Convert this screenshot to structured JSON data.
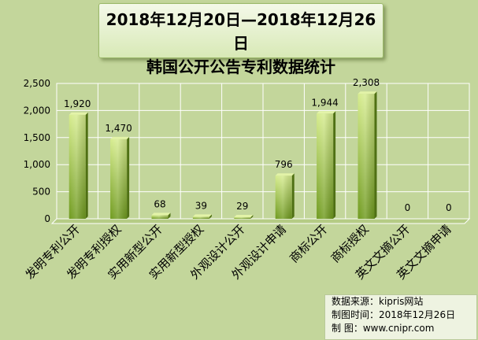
{
  "title": {
    "line1": "2018年12月20日—2018年12月26日",
    "line2": "韩国公开公告专利数据统计"
  },
  "source": {
    "line1": "数据来源：kipris网站",
    "line2": "制图时间：2018年12月26日",
    "line3": "制    图：www.cnipr.com"
  },
  "colors": {
    "bar_top": "#d6ec8e",
    "bar_bottom": "#6f9a1e",
    "background": "#c3d69b"
  },
  "chart_data": {
    "type": "bar",
    "categories": [
      "发明专利公开",
      "发明专利授权",
      "实用新型公开",
      "实用新型授权",
      "外观设计公开",
      "外观设计申请",
      "商标公开",
      "商标授权",
      "英文文摘公开",
      "英文文摘申请"
    ],
    "values": [
      1920,
      1470,
      68,
      39,
      29,
      796,
      1944,
      2308,
      0,
      0
    ],
    "data_labels": [
      "1,920",
      "1,470",
      "68",
      "39",
      "29",
      "796",
      "1,944",
      "2,308",
      "0",
      "0"
    ],
    "yticks": [
      0,
      500,
      1000,
      1500,
      2000,
      2500
    ],
    "ytick_labels": [
      "0",
      "500",
      "1,000",
      "1,500",
      "2,000",
      "2,500"
    ],
    "ylim": [
      0,
      2500
    ],
    "grid": true,
    "legend": false
  }
}
